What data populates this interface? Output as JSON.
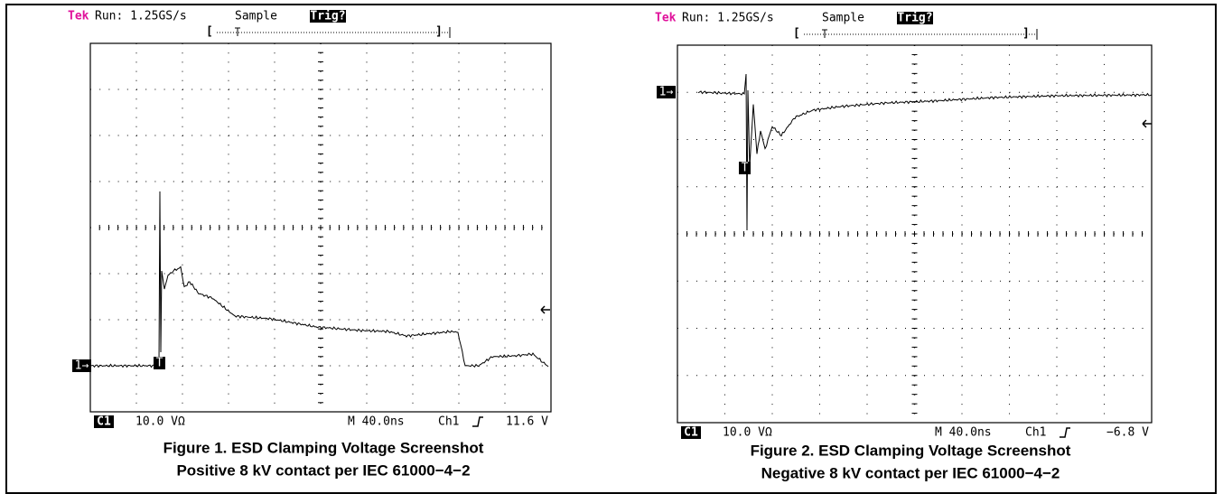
{
  "figures": [
    {
      "header": {
        "brand": "Tek",
        "run": "Run: 1.25GS/s",
        "mode": "Sample",
        "status": "Trig?"
      },
      "channel_marker": "1→",
      "trigger_marker": "T",
      "footer": {
        "channel": "C1",
        "scale": "10.0 VΩ",
        "timebase": "M 40.0ns",
        "source": "Ch1",
        "level": "11.6 V"
      },
      "caption": [
        "Figure 1. ESD Clamping Voltage Screenshot",
        "Positive 8 kV contact per IEC 61000−4−2"
      ]
    },
    {
      "header": {
        "brand": "Tek",
        "run": "Run: 1.25GS/s",
        "mode": "Sample",
        "status": "Trig?"
      },
      "channel_marker": "1→",
      "trigger_marker": "T",
      "footer": {
        "channel": "C1",
        "scale": "10.0 VΩ",
        "timebase": "M 40.0ns",
        "source": "Ch1",
        "level": "−6.8 V"
      },
      "caption": [
        "Figure 2. ESD Clamping Voltage Screenshot",
        "Negative 8 kV contact per IEC 61000−4−2"
      ]
    }
  ]
}
